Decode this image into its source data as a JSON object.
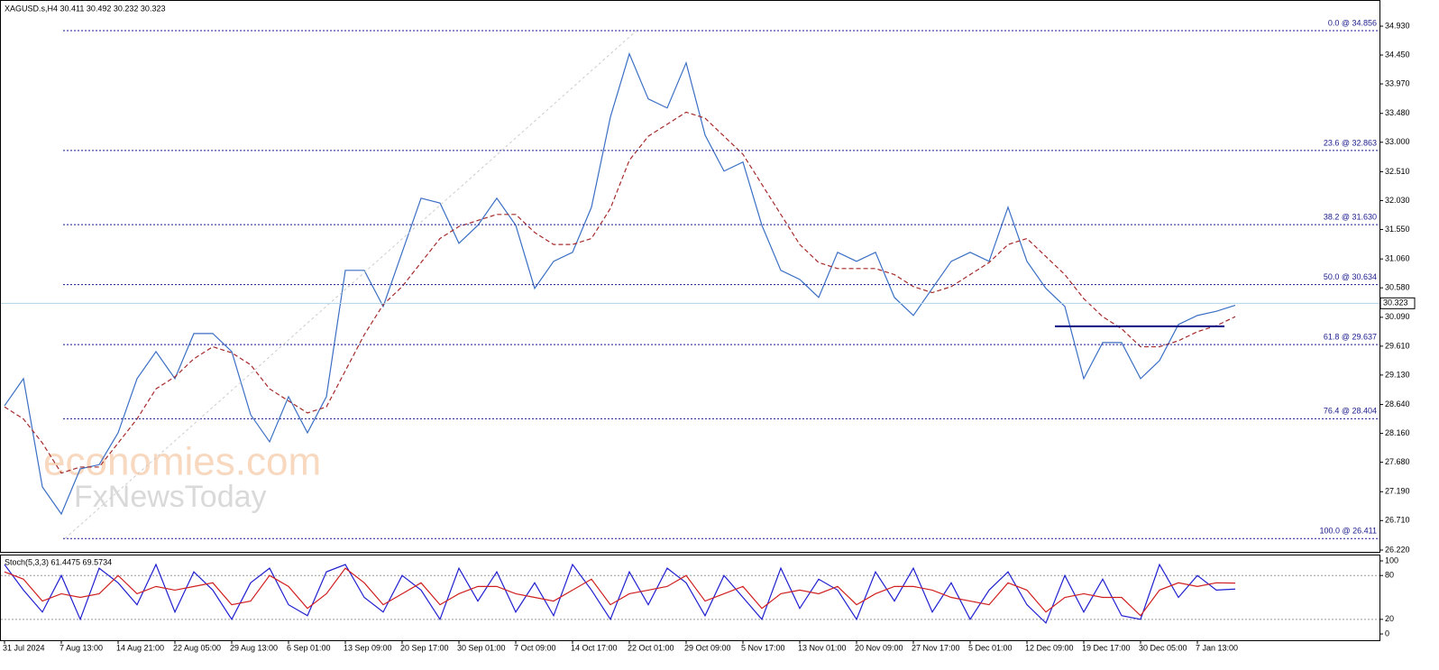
{
  "chart_data": [
    {
      "type": "line",
      "title": "XAGUSD.s,H4  30.411 30.492 30.232 30.323",
      "categories": [
        "31 Jul 2024",
        null,
        null,
        "7 Aug 13:00",
        null,
        null,
        "14 Aug 21:00",
        null,
        null,
        "22 Aug 05:00",
        null,
        null,
        "29 Aug 13:00",
        null,
        null,
        "6 Sep 01:00",
        null,
        null,
        "13 Sep 09:00",
        null,
        null,
        "20 Sep 17:00",
        null,
        null,
        "30 Sep 01:00",
        null,
        null,
        "7 Oct 09:00",
        null,
        null,
        "14 Oct 17:00",
        null,
        null,
        "22 Oct 01:00",
        null,
        null,
        "29 Oct 09:00",
        null,
        null,
        "5 Nov 17:00",
        null,
        null,
        "13 Nov 01:00",
        null,
        null,
        "20 Nov 09:00",
        null,
        null,
        "27 Nov 17:00",
        null,
        null,
        "5 Dec 01:00",
        null,
        null,
        "12 Dec 09:00",
        null,
        null,
        "19 Dec 17:00",
        null,
        null,
        "30 Dec 05:00",
        null,
        null,
        "7 Jan 13:00",
        null,
        null
      ],
      "series": [
        {
          "name": "XAGUSD.s",
          "color": "#3b6fc4",
          "values": [
            28.62,
            29.07,
            27.27,
            26.82,
            27.57,
            27.64,
            28.17,
            29.07,
            29.52,
            29.07,
            29.82,
            29.82,
            29.52,
            28.47,
            28.02,
            28.77,
            28.17,
            28.77,
            30.87,
            30.87,
            30.27,
            31.17,
            32.07,
            31.99,
            31.32,
            31.62,
            32.07,
            31.62,
            30.57,
            31.02,
            31.17,
            31.92,
            33.42,
            34.47,
            33.72,
            33.57,
            34.32,
            33.12,
            32.52,
            32.67,
            31.62,
            30.87,
            30.72,
            30.42,
            31.17,
            31.02,
            31.17,
            30.42,
            30.12,
            30.57,
            31.02,
            31.17,
            31.02,
            31.92,
            31.02,
            30.57,
            30.27,
            29.07,
            29.67,
            29.67,
            29.07,
            29.37,
            29.97,
            30.12,
            30.19,
            30.29
          ]
        },
        {
          "name": "MA",
          "color": "#a52a2a",
          "values": [
            28.6,
            28.4,
            28.0,
            27.5,
            27.6,
            27.6,
            28.0,
            28.4,
            28.9,
            29.1,
            29.4,
            29.6,
            29.5,
            29.3,
            28.9,
            28.7,
            28.5,
            28.6,
            29.2,
            29.8,
            30.3,
            30.6,
            31.0,
            31.4,
            31.6,
            31.7,
            31.8,
            31.8,
            31.5,
            31.3,
            31.3,
            31.4,
            31.9,
            32.7,
            33.1,
            33.3,
            33.5,
            33.4,
            33.1,
            32.8,
            32.3,
            31.8,
            31.3,
            31.0,
            30.9,
            30.9,
            30.9,
            30.8,
            30.6,
            30.5,
            30.6,
            30.8,
            31.0,
            31.3,
            31.4,
            31.1,
            30.8,
            30.4,
            30.1,
            29.9,
            29.6,
            29.6,
            29.7,
            29.85,
            29.95,
            30.1
          ]
        }
      ],
      "ylim": [
        26.19,
        35.365
      ],
      "yticks": [
        {
          "value": 34.93,
          "label": "34.930"
        },
        {
          "value": 34.45,
          "label": "34.450"
        },
        {
          "value": 33.97,
          "label": "33.970"
        },
        {
          "value": 33.48,
          "label": "33.480"
        },
        {
          "value": 33.0,
          "label": "33.000"
        },
        {
          "value": 32.51,
          "label": "32.510"
        },
        {
          "value": 32.03,
          "label": "32.030"
        },
        {
          "value": 31.55,
          "label": "31.550"
        },
        {
          "value": 31.06,
          "label": "31.060"
        },
        {
          "value": 30.58,
          "label": "30.580"
        },
        {
          "value": 30.09,
          "label": "30.090"
        },
        {
          "value": 29.61,
          "label": "29.610"
        },
        {
          "value": 29.13,
          "label": "29.130"
        },
        {
          "value": 28.64,
          "label": "28.640"
        },
        {
          "value": 28.16,
          "label": "28.160"
        },
        {
          "value": 27.68,
          "label": "27.680"
        },
        {
          "value": 27.19,
          "label": "27.190"
        },
        {
          "value": 26.71,
          "label": "26.710"
        },
        {
          "value": 26.22,
          "label": "26.220"
        }
      ],
      "fib_levels": [
        {
          "value": 34.856,
          "label": "0.0 @ 34.856"
        },
        {
          "value": 32.863,
          "label": "23.6 @ 32.863"
        },
        {
          "value": 31.63,
          "label": "38.2 @ 31.630"
        },
        {
          "value": 30.634,
          "label": "50.0 @ 30.634"
        },
        {
          "value": 29.637,
          "label": "61.8 @ 29.637"
        },
        {
          "value": 28.404,
          "label": "76.4 @ 28.404"
        },
        {
          "value": 26.411,
          "label": "100.0 @ 26.411"
        }
      ],
      "fib_color": "#1a1a8c",
      "last_price": {
        "value": 30.323,
        "label": "30.323"
      },
      "horizontal_line": 29.94,
      "watermark": [
        "economies.com",
        "FxNewsToday"
      ]
    },
    {
      "type": "line",
      "title": "Stoch(5,3,3) 61.4475 69.5734",
      "series": [
        {
          "name": "Main",
          "color": "#1f1fd0",
          "values": [
            95,
            60,
            30,
            80,
            20,
            90,
            70,
            40,
            95,
            30,
            85,
            60,
            20,
            70,
            90,
            40,
            25,
            85,
            95,
            50,
            30,
            80,
            60,
            20,
            90,
            45,
            85,
            30,
            70,
            25,
            95,
            60,
            20,
            85,
            40,
            90,
            70,
            25,
            80,
            50,
            20,
            90,
            35,
            75,
            60,
            20,
            85,
            45,
            90,
            30,
            70,
            20,
            60,
            85,
            40,
            15,
            80,
            30,
            75,
            25,
            20,
            95,
            50,
            80,
            60,
            61.4
          ]
        },
        {
          "name": "Signal",
          "color": "#d01f1f",
          "values": [
            85,
            75,
            45,
            55,
            50,
            55,
            80,
            55,
            65,
            60,
            65,
            70,
            40,
            45,
            80,
            65,
            35,
            55,
            90,
            70,
            40,
            55,
            70,
            40,
            55,
            65,
            65,
            55,
            50,
            45,
            60,
            75,
            40,
            55,
            60,
            65,
            80,
            45,
            55,
            65,
            35,
            55,
            60,
            55,
            65,
            40,
            55,
            65,
            65,
            60,
            50,
            45,
            40,
            70,
            60,
            30,
            50,
            55,
            50,
            50,
            25,
            60,
            70,
            65,
            70,
            69.6
          ]
        }
      ],
      "ylim": [
        -8.6,
        107.4
      ],
      "yticks": [
        0,
        20,
        80,
        100
      ],
      "levels": [
        20,
        80
      ]
    }
  ]
}
